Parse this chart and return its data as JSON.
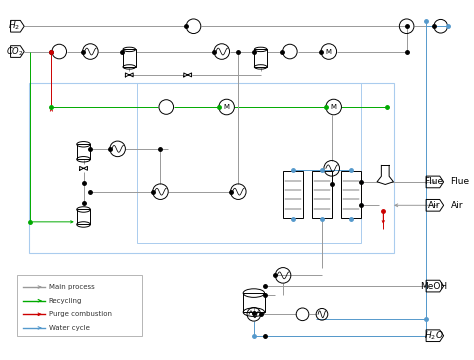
{
  "legend": [
    {
      "label": "Main process",
      "color": "#999999"
    },
    {
      "label": "Recycling",
      "color": "#00aa00"
    },
    {
      "label": "Purge combustion",
      "color": "#cc0000"
    },
    {
      "label": "Water cycle",
      "color": "#5599cc"
    }
  ],
  "background": "#ffffff",
  "gray": "#999999",
  "green": "#00aa00",
  "red": "#cc0000",
  "blue": "#5599cc"
}
